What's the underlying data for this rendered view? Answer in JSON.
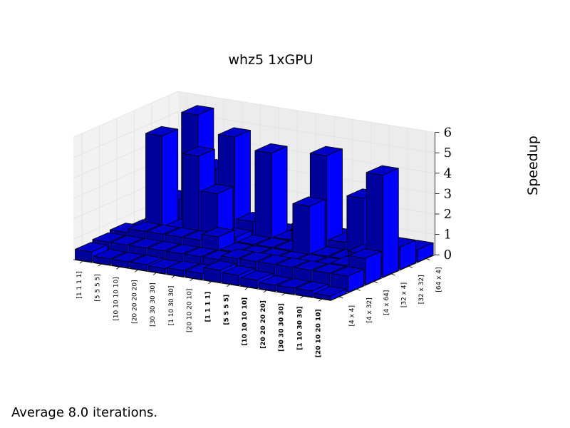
{
  "chart_data": {
    "type": "bar3d",
    "title": "whz5 1xGPU",
    "zlabel": "Speedup",
    "zlim": [
      0,
      6
    ],
    "zticks": [
      "0",
      "1",
      "2",
      "3",
      "4",
      "5",
      "6"
    ],
    "x_tick_labels": [
      "[1 1 1 1]",
      "[5 5 5 5]",
      "[10 10 10 10]",
      "[20 20 20 20]",
      "[30 30 30 30]",
      "[1 10 30 30]",
      "[20 10 20 10]",
      "[1 1 1 1]",
      "[5 5 5 5]",
      "[10 10 10 10]",
      "[20 20 20 20]",
      "[30 30 30 30]",
      "[1 10 30 30]",
      "[20 10 20 10]"
    ],
    "x_tick_bold": [
      false,
      false,
      false,
      false,
      false,
      false,
      false,
      true,
      true,
      true,
      true,
      true,
      true,
      true
    ],
    "y_tick_labels": [
      "[4 x 4]",
      "[4 x 32]",
      "[4 x 64]",
      "[32 x 4]",
      "[32 x 32]",
      "[64 x 4]"
    ],
    "values": [
      [
        0.5,
        0.3,
        0.3,
        0.3,
        0.25,
        0.3,
        0.3,
        0.6,
        0.5,
        0.4,
        0.3,
        0.3,
        0.3,
        0.2
      ],
      [
        0.6,
        0.6,
        0.6,
        0.6,
        0.6,
        0.6,
        0.6,
        0.8,
        0.8,
        0.8,
        0.8,
        0.8,
        0.8,
        0.8
      ],
      [
        0.7,
        0.9,
        0.9,
        0.9,
        0.9,
        1.2,
        0.6,
        0.6,
        0.6,
        0.6,
        0.6,
        0.6,
        0.8,
        1.3
      ],
      [
        0.5,
        5.2,
        0.8,
        4.5,
        2.8,
        0.8,
        0.6,
        0.6,
        0.6,
        2.9,
        0.6,
        0.6,
        1.0,
        5.0
      ],
      [
        0.5,
        1.7,
        6.0,
        3.5,
        5.2,
        1.2,
        4.7,
        0.6,
        1.4,
        5.0,
        0.9,
        3.2,
        0.8,
        1.1
      ],
      [
        0.4,
        0.4,
        0.4,
        0.4,
        0.4,
        0.4,
        0.4,
        0.6,
        0.6,
        0.6,
        0.6,
        0.6,
        0.6,
        0.6
      ]
    ],
    "bar_color": "#0000ff",
    "grid": true
  },
  "footer_text": "Average 8.0 iterations."
}
